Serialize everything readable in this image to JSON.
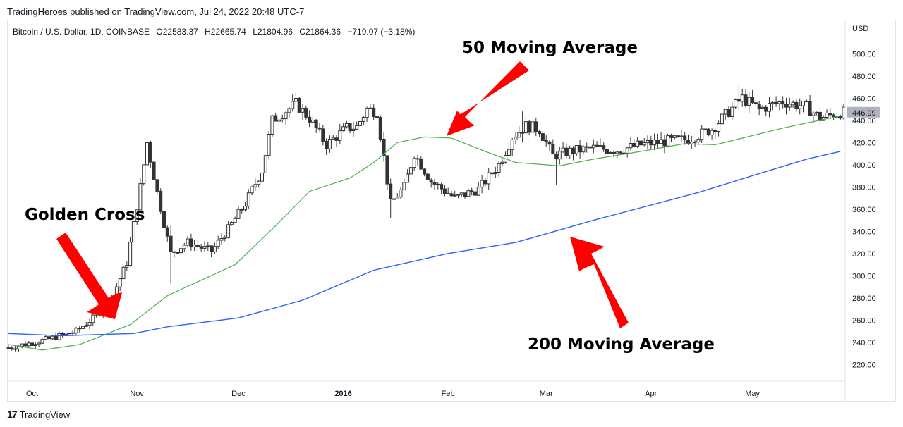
{
  "header": {
    "published": "TradingHeroes published on TradingView.com, Jul 24, 2022 20:48 UTC-7"
  },
  "legend": {
    "symbol": "Bitcoin / U.S. Dollar, 1D, COINBASE",
    "open": "O22583.37",
    "high": "H22665.74",
    "low": "L21804.96",
    "close": "C21864.36",
    "change": "−719.07 (−3.18%)"
  },
  "footer": {
    "brand": "TradingView"
  },
  "annotations": {
    "golden_cross": "Golden Cross",
    "ma50": "50 Moving Average",
    "ma200": "200 Moving Average"
  },
  "colors": {
    "ma50": "#4caf50",
    "ma200": "#2962ff",
    "arrow": "#ff0000",
    "candle": "#333333",
    "price_badge": "#b0b3bd"
  },
  "chart_data": {
    "type": "candlestick",
    "currency_label": "USD",
    "ylim": [
      205,
      530
    ],
    "y_ticks": [
      "220.00",
      "240.00",
      "260.00",
      "280.00",
      "300.00",
      "320.00",
      "340.00",
      "360.00",
      "380.00",
      "400.00",
      "420.00",
      "440.00",
      "460.00",
      "480.00",
      "500.00"
    ],
    "x_ticks": [
      {
        "label": "Oct",
        "date": "2015-10-01",
        "bold": false
      },
      {
        "label": "Nov",
        "date": "2015-11-01",
        "bold": false
      },
      {
        "label": "Dec",
        "date": "2015-12-01",
        "bold": false
      },
      {
        "label": "2016",
        "date": "2016-01-01",
        "bold": true
      },
      {
        "label": "Feb",
        "date": "2016-02-01",
        "bold": false
      },
      {
        "label": "Mar",
        "date": "2016-03-01",
        "bold": false
      },
      {
        "label": "Apr",
        "date": "2016-04-01",
        "bold": false
      },
      {
        "label": "May",
        "date": "2016-05-01",
        "bold": false
      }
    ],
    "x_range": [
      "2015-09-24",
      "2016-05-28"
    ],
    "last_price": "446.99",
    "price_anchors": [
      {
        "date": "2015-09-24",
        "price": 235
      },
      {
        "date": "2015-10-06",
        "price": 243
      },
      {
        "date": "2015-10-14",
        "price": 250
      },
      {
        "date": "2015-10-20",
        "price": 264
      },
      {
        "date": "2015-10-25",
        "price": 283
      },
      {
        "date": "2015-10-29",
        "price": 312
      },
      {
        "date": "2015-11-02",
        "price": 380
      },
      {
        "date": "2015-11-04",
        "price": 420
      },
      {
        "date": "2015-11-07",
        "price": 375
      },
      {
        "date": "2015-11-11",
        "price": 320
      },
      {
        "date": "2015-11-16",
        "price": 330
      },
      {
        "date": "2015-11-23",
        "price": 322
      },
      {
        "date": "2015-11-28",
        "price": 342
      },
      {
        "date": "2015-12-03",
        "price": 365
      },
      {
        "date": "2015-12-08",
        "price": 395
      },
      {
        "date": "2015-12-11",
        "price": 440
      },
      {
        "date": "2015-12-18",
        "price": 455
      },
      {
        "date": "2015-12-22",
        "price": 442
      },
      {
        "date": "2015-12-27",
        "price": 418
      },
      {
        "date": "2016-01-02",
        "price": 433
      },
      {
        "date": "2016-01-05",
        "price": 434
      },
      {
        "date": "2016-01-08",
        "price": 450
      },
      {
        "date": "2016-01-11",
        "price": 448
      },
      {
        "date": "2016-01-15",
        "price": 365
      },
      {
        "date": "2016-01-19",
        "price": 380
      },
      {
        "date": "2016-01-22",
        "price": 410
      },
      {
        "date": "2016-01-27",
        "price": 385
      },
      {
        "date": "2016-02-03",
        "price": 370
      },
      {
        "date": "2016-02-10",
        "price": 378
      },
      {
        "date": "2016-02-16",
        "price": 400
      },
      {
        "date": "2016-02-20",
        "price": 425
      },
      {
        "date": "2016-02-24",
        "price": 435
      },
      {
        "date": "2016-02-28",
        "price": 432
      },
      {
        "date": "2016-03-03",
        "price": 408
      },
      {
        "date": "2016-03-08",
        "price": 412
      },
      {
        "date": "2016-03-15",
        "price": 415
      },
      {
        "date": "2016-03-22",
        "price": 413
      },
      {
        "date": "2016-03-29",
        "price": 418
      },
      {
        "date": "2016-04-05",
        "price": 421
      },
      {
        "date": "2016-04-12",
        "price": 423
      },
      {
        "date": "2016-04-19",
        "price": 432
      },
      {
        "date": "2016-04-24",
        "price": 448
      },
      {
        "date": "2016-04-28",
        "price": 460
      },
      {
        "date": "2016-05-03",
        "price": 450
      },
      {
        "date": "2016-05-10",
        "price": 457
      },
      {
        "date": "2016-05-17",
        "price": 452
      },
      {
        "date": "2016-05-21",
        "price": 442
      },
      {
        "date": "2016-05-27",
        "price": 447
      }
    ],
    "spikes": [
      {
        "date": "2015-11-04",
        "high": 500,
        "low": 380
      },
      {
        "date": "2015-11-11",
        "high": 345,
        "low": 293
      },
      {
        "date": "2016-01-15",
        "high": 365,
        "low": 352
      },
      {
        "date": "2016-02-23",
        "high": 448,
        "low": 420
      },
      {
        "date": "2016-03-04",
        "high": 410,
        "low": 382
      },
      {
        "date": "2016-04-27",
        "high": 472,
        "low": 450
      }
    ],
    "series": [
      {
        "name": "50 Moving Average",
        "color": "#4caf50",
        "points": [
          {
            "date": "2015-09-24",
            "value": 238
          },
          {
            "date": "2015-10-04",
            "value": 233
          },
          {
            "date": "2015-10-15",
            "value": 238
          },
          {
            "date": "2015-10-30",
            "value": 256
          },
          {
            "date": "2015-11-10",
            "value": 282
          },
          {
            "date": "2015-11-30",
            "value": 310
          },
          {
            "date": "2015-12-12",
            "value": 345
          },
          {
            "date": "2015-12-22",
            "value": 376
          },
          {
            "date": "2016-01-03",
            "value": 388
          },
          {
            "date": "2016-01-10",
            "value": 402
          },
          {
            "date": "2016-01-17",
            "value": 420
          },
          {
            "date": "2016-01-25",
            "value": 425
          },
          {
            "date": "2016-02-02",
            "value": 424
          },
          {
            "date": "2016-02-12",
            "value": 412
          },
          {
            "date": "2016-02-21",
            "value": 402
          },
          {
            "date": "2016-03-05",
            "value": 399
          },
          {
            "date": "2016-03-15",
            "value": 405
          },
          {
            "date": "2016-03-29",
            "value": 412
          },
          {
            "date": "2016-04-11",
            "value": 419
          },
          {
            "date": "2016-04-20",
            "value": 418
          },
          {
            "date": "2016-04-28",
            "value": 424
          },
          {
            "date": "2016-05-10",
            "value": 433
          },
          {
            "date": "2016-05-27",
            "value": 444
          }
        ]
      },
      {
        "name": "200 Moving Average",
        "color": "#2962ff",
        "points": [
          {
            "date": "2015-09-24",
            "value": 248
          },
          {
            "date": "2015-10-10",
            "value": 246
          },
          {
            "date": "2015-10-31",
            "value": 248
          },
          {
            "date": "2015-11-10",
            "value": 254
          },
          {
            "date": "2015-12-01",
            "value": 262
          },
          {
            "date": "2015-12-20",
            "value": 278
          },
          {
            "date": "2016-01-10",
            "value": 305
          },
          {
            "date": "2016-02-01",
            "value": 320
          },
          {
            "date": "2016-02-21",
            "value": 330
          },
          {
            "date": "2016-03-15",
            "value": 350
          },
          {
            "date": "2016-04-15",
            "value": 375
          },
          {
            "date": "2016-05-03",
            "value": 392
          },
          {
            "date": "2016-05-17",
            "value": 405
          },
          {
            "date": "2016-05-27",
            "value": 412
          }
        ]
      }
    ]
  }
}
